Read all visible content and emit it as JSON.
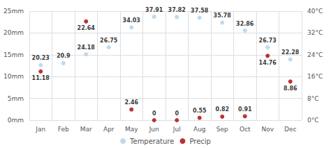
{
  "chart_data": {
    "type": "scatter",
    "categories": [
      "Jan",
      "Feb",
      "Mar",
      "Apr",
      "May",
      "Jun",
      "Jul",
      "Aug",
      "Sep",
      "Oct",
      "Nov",
      "Dec"
    ],
    "series": [
      {
        "name": "Temperature",
        "color": "#b0cfe8",
        "axis": "y2",
        "marker": "circle",
        "values": [
          20.23,
          20.9,
          24.18,
          26.75,
          34.03,
          37.91,
          37.82,
          37.58,
          35.78,
          32.86,
          26.73,
          22.28
        ]
      },
      {
        "name": "Precip",
        "color": "#aa0000",
        "marker": "circle",
        "values": [
          11.18,
          null,
          22.64,
          null,
          2.46,
          0,
          0,
          0.55,
          0.82,
          0.91,
          14.76,
          8.86
        ]
      }
    ],
    "ylim": [
      0,
      25
    ],
    "yticks": [
      {
        "value": 0,
        "label": "0mm"
      },
      {
        "value": 5,
        "label": "5mm"
      },
      {
        "value": 10,
        "label": "10mm"
      },
      {
        "value": 15,
        "label": "15mm"
      },
      {
        "value": 20,
        "label": "20mm"
      },
      {
        "value": 25,
        "label": "25mm"
      }
    ],
    "y2lim": [
      0,
      40
    ],
    "y2ticks": [
      {
        "value": 0,
        "label": "0°C"
      },
      {
        "value": 8,
        "label": "8°C"
      },
      {
        "value": 16,
        "label": "16°C"
      },
      {
        "value": 24,
        "label": "24°C"
      },
      {
        "value": 32,
        "label": "32°C"
      },
      {
        "value": 40,
        "label": "40°C"
      }
    ],
    "grid": true,
    "legend": "bottom",
    "data_labels": true
  }
}
